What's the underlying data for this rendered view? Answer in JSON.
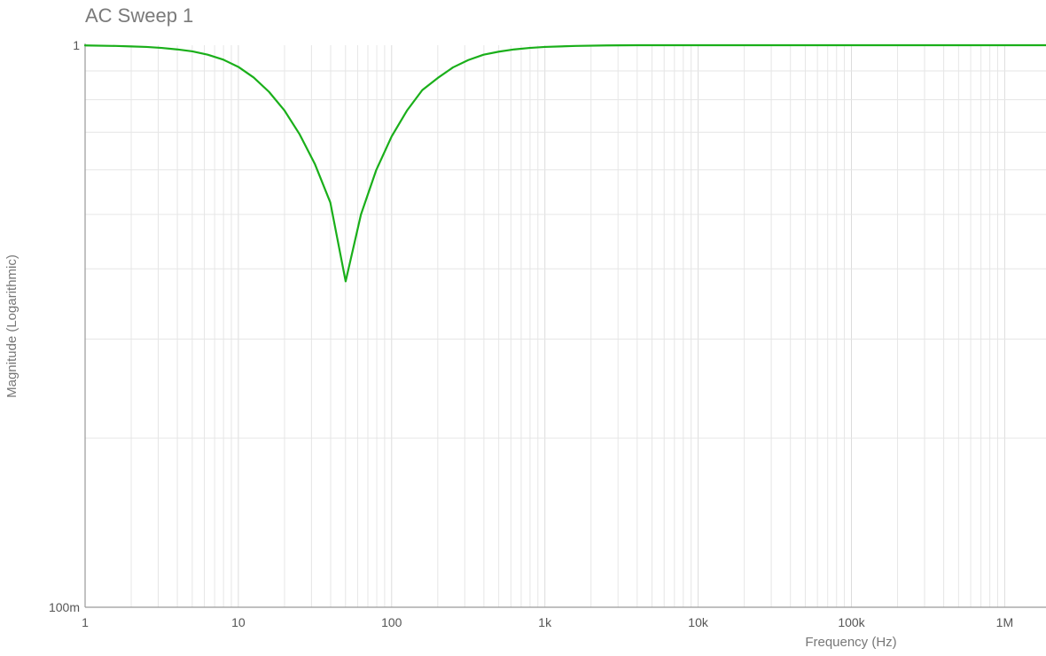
{
  "chart_data": {
    "type": "line",
    "title": "AC Sweep 1",
    "xlabel": "Frequency (Hz)",
    "ylabel": "Magnitude (Logarithmic)",
    "x_scale": "log",
    "y_scale": "log",
    "xlim": [
      1,
      2000000
    ],
    "ylim": [
      0.1,
      1
    ],
    "x_ticks": [
      {
        "value": 1,
        "label": "1"
      },
      {
        "value": 10,
        "label": "10"
      },
      {
        "value": 100,
        "label": "100"
      },
      {
        "value": 1000,
        "label": "1k"
      },
      {
        "value": 10000,
        "label": "10k"
      },
      {
        "value": 100000,
        "label": "100k"
      },
      {
        "value": 1000000,
        "label": "1M"
      }
    ],
    "y_ticks": [
      {
        "value": 1,
        "label": "1"
      },
      {
        "value": 0.1,
        "label": "100m"
      }
    ],
    "grid": true,
    "series": [
      {
        "color": "#1aaf1a",
        "x": [
          1,
          1.585,
          2,
          2.512,
          3.162,
          3.981,
          5.012,
          6.31,
          7.943,
          10,
          12.59,
          15.85,
          19.95,
          25.12,
          31.62,
          39.81,
          50.12,
          63.1,
          79.43,
          100,
          125.9,
          158.5,
          199.5,
          251.2,
          316.2,
          398.1,
          501.2,
          631,
          794.3,
          1000,
          1585,
          2512,
          3981,
          6310,
          10000,
          100000,
          1000000,
          2000000
        ],
        "y": [
          0.999,
          0.997,
          0.995,
          0.993,
          0.989,
          0.983,
          0.975,
          0.962,
          0.943,
          0.915,
          0.876,
          0.826,
          0.766,
          0.694,
          0.614,
          0.525,
          0.38,
          0.5,
          0.6,
          0.688,
          0.765,
          0.832,
          0.874,
          0.913,
          0.941,
          0.962,
          0.974,
          0.983,
          0.989,
          0.993,
          0.997,
          0.999,
          1.0,
          1.0,
          1.0,
          1.0,
          1.0,
          1.0
        ]
      }
    ]
  }
}
